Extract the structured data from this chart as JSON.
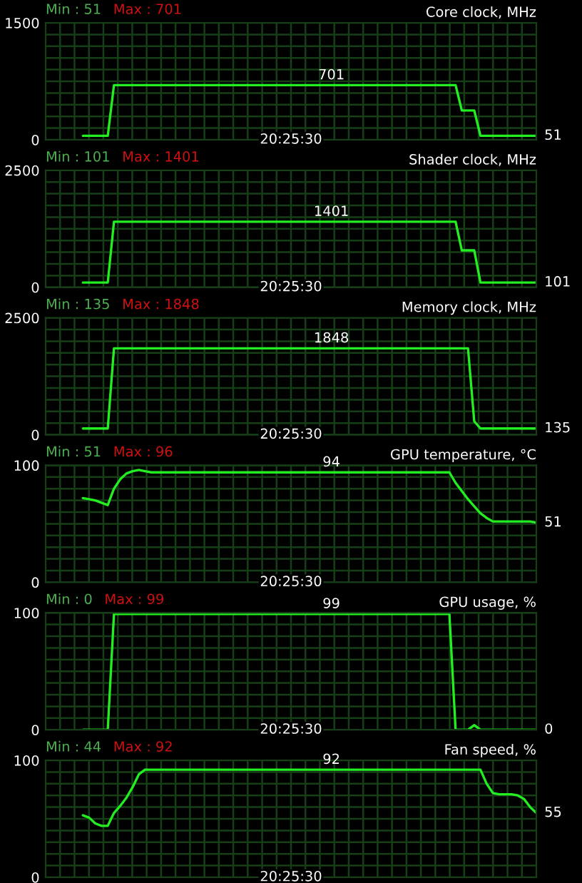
{
  "chart_data": [
    {
      "type": "line",
      "title": "Core clock, MHz",
      "annotations": [
        "Min : 51",
        "Max : 701",
        "20:25:30"
      ],
      "categories": [
        null,
        null,
        null,
        null,
        null,
        null,
        null,
        null,
        null,
        null,
        null,
        null,
        null,
        null,
        null,
        null,
        null,
        null,
        null,
        null,
        null,
        null,
        null,
        null,
        null,
        null,
        null,
        null,
        null,
        null,
        null,
        null,
        null,
        null,
        null,
        null,
        null,
        null,
        null,
        null,
        null,
        null,
        null,
        null,
        null,
        null,
        null,
        null,
        null,
        null,
        null,
        null,
        null,
        null,
        null,
        null,
        null,
        null,
        null,
        null,
        null,
        null,
        null,
        null,
        null,
        null,
        null,
        null,
        null,
        null,
        null,
        null,
        null,
        null,
        null,
        null,
        null,
        null,
        null,
        null
      ],
      "ylim": [
        0,
        1500
      ],
      "yticks": [
        0,
        1500
      ],
      "grid": true,
      "tick_labels": "y",
      "series": [
        {
          "color": "#22ee22",
          "values": [
            null,
            null,
            null,
            null,
            null,
            null,
            51,
            51,
            51,
            51,
            51,
            701,
            701,
            701,
            701,
            701,
            701,
            701,
            701,
            701,
            701,
            701,
            701,
            701,
            701,
            701,
            701,
            701,
            701,
            701,
            701,
            701,
            701,
            701,
            701,
            701,
            701,
            701,
            701,
            701,
            701,
            701,
            701,
            701,
            701,
            701,
            701,
            701,
            701,
            701,
            701,
            701,
            701,
            701,
            701,
            701,
            701,
            701,
            701,
            701,
            701,
            701,
            701,
            701,
            701,
            701,
            701,
            376,
            376,
            376,
            51,
            51,
            51,
            51,
            51,
            51,
            51,
            51,
            51,
            51
          ],
          "value_labels": [
            null,
            null,
            null,
            null,
            null,
            null,
            null,
            null,
            null,
            null,
            null,
            null,
            null,
            null,
            null,
            null,
            null,
            null,
            null,
            null,
            null,
            null,
            null,
            null,
            null,
            null,
            null,
            null,
            null,
            null,
            null,
            null,
            null,
            null,
            null,
            null,
            null,
            null,
            null,
            null,
            null,
            null,
            null,
            null,
            null,
            null,
            "701",
            null,
            null,
            null,
            null,
            null,
            null,
            null,
            null,
            null,
            null,
            null,
            null,
            null,
            null,
            null,
            null,
            null,
            null,
            null,
            null,
            null,
            null,
            null,
            null,
            null,
            null,
            null,
            null,
            null,
            null,
            null,
            null,
            "51"
          ]
        }
      ]
    },
    {
      "type": "line",
      "title": "Shader clock, MHz",
      "annotations": [
        "Min : 101",
        "Max : 1401",
        "20:25:30"
      ],
      "categories": [
        null,
        null,
        null,
        null,
        null,
        null,
        null,
        null,
        null,
        null,
        null,
        null,
        null,
        null,
        null,
        null,
        null,
        null,
        null,
        null,
        null,
        null,
        null,
        null,
        null,
        null,
        null,
        null,
        null,
        null,
        null,
        null,
        null,
        null,
        null,
        null,
        null,
        null,
        null,
        null,
        null,
        null,
        null,
        null,
        null,
        null,
        null,
        null,
        null,
        null,
        null,
        null,
        null,
        null,
        null,
        null,
        null,
        null,
        null,
        null,
        null,
        null,
        null,
        null,
        null,
        null,
        null,
        null,
        null,
        null,
        null,
        null,
        null,
        null,
        null,
        null,
        null,
        null,
        null,
        null
      ],
      "ylim": [
        0,
        2500
      ],
      "yticks": [
        0,
        2500
      ],
      "grid": true,
      "tick_labels": "y",
      "series": [
        {
          "color": "#22ee22",
          "values": [
            null,
            null,
            null,
            null,
            null,
            null,
            101,
            101,
            101,
            101,
            101,
            1401,
            1401,
            1401,
            1401,
            1401,
            1401,
            1401,
            1401,
            1401,
            1401,
            1401,
            1401,
            1401,
            1401,
            1401,
            1401,
            1401,
            1401,
            1401,
            1401,
            1401,
            1401,
            1401,
            1401,
            1401,
            1401,
            1401,
            1401,
            1401,
            1401,
            1401,
            1401,
            1401,
            1401,
            1401,
            1401,
            1401,
            1401,
            1401,
            1401,
            1401,
            1401,
            1401,
            1401,
            1401,
            1401,
            1401,
            1401,
            1401,
            1401,
            1401,
            1401,
            1401,
            1401,
            1401,
            1401,
            789,
            789,
            789,
            101,
            101,
            101,
            101,
            101,
            101,
            101,
            101,
            101,
            101
          ],
          "value_labels": [
            null,
            null,
            null,
            null,
            null,
            null,
            null,
            null,
            null,
            null,
            null,
            null,
            null,
            null,
            null,
            null,
            null,
            null,
            null,
            null,
            null,
            null,
            null,
            null,
            null,
            null,
            null,
            null,
            null,
            null,
            null,
            null,
            null,
            null,
            null,
            null,
            null,
            null,
            null,
            null,
            null,
            null,
            null,
            null,
            null,
            null,
            "1401",
            null,
            null,
            null,
            null,
            null,
            null,
            null,
            null,
            null,
            null,
            null,
            null,
            null,
            null,
            null,
            null,
            null,
            null,
            null,
            null,
            null,
            null,
            null,
            null,
            null,
            null,
            null,
            null,
            null,
            null,
            null,
            null,
            "101"
          ]
        }
      ]
    },
    {
      "type": "line",
      "title": "Memory clock, MHz",
      "annotations": [
        "Min : 135",
        "Max : 1848",
        "20:25:30"
      ],
      "categories": [
        null,
        null,
        null,
        null,
        null,
        null,
        null,
        null,
        null,
        null,
        null,
        null,
        null,
        null,
        null,
        null,
        null,
        null,
        null,
        null,
        null,
        null,
        null,
        null,
        null,
        null,
        null,
        null,
        null,
        null,
        null,
        null,
        null,
        null,
        null,
        null,
        null,
        null,
        null,
        null,
        null,
        null,
        null,
        null,
        null,
        null,
        null,
        null,
        null,
        null,
        null,
        null,
        null,
        null,
        null,
        null,
        null,
        null,
        null,
        null,
        null,
        null,
        null,
        null,
        null,
        null,
        null,
        null,
        null,
        null,
        null,
        null,
        null,
        null,
        null,
        null,
        null,
        null,
        null,
        null
      ],
      "ylim": [
        0,
        2500
      ],
      "yticks": [
        0,
        2500
      ],
      "grid": true,
      "tick_labels": "y",
      "series": [
        {
          "color": "#22ee22",
          "values": [
            null,
            null,
            null,
            null,
            null,
            null,
            135,
            135,
            135,
            135,
            135,
            1848,
            1848,
            1848,
            1848,
            1848,
            1848,
            1848,
            1848,
            1848,
            1848,
            1848,
            1848,
            1848,
            1848,
            1848,
            1848,
            1848,
            1848,
            1848,
            1848,
            1848,
            1848,
            1848,
            1848,
            1848,
            1848,
            1848,
            1848,
            1848,
            1848,
            1848,
            1848,
            1848,
            1848,
            1848,
            1848,
            1848,
            1848,
            1848,
            1848,
            1848,
            1848,
            1848,
            1848,
            1848,
            1848,
            1848,
            1848,
            1848,
            1848,
            1848,
            1848,
            1848,
            1848,
            1848,
            1848,
            1848,
            1848,
            287,
            135,
            135,
            135,
            135,
            135,
            135,
            135,
            135,
            135,
            135
          ],
          "value_labels": [
            null,
            null,
            null,
            null,
            null,
            null,
            null,
            null,
            null,
            null,
            null,
            null,
            null,
            null,
            null,
            null,
            null,
            null,
            null,
            null,
            null,
            null,
            null,
            null,
            null,
            null,
            null,
            null,
            null,
            null,
            null,
            null,
            null,
            null,
            null,
            null,
            null,
            null,
            null,
            null,
            null,
            null,
            null,
            null,
            null,
            null,
            "1848",
            null,
            null,
            null,
            null,
            null,
            null,
            null,
            null,
            null,
            null,
            null,
            null,
            null,
            null,
            null,
            null,
            null,
            null,
            null,
            null,
            null,
            null,
            null,
            null,
            null,
            null,
            null,
            null,
            null,
            null,
            null,
            null,
            "135"
          ]
        }
      ]
    },
    {
      "type": "line",
      "title": "GPU temperature, °C",
      "annotations": [
        "Min : 51",
        "Max : 96",
        "20:25:30"
      ],
      "categories": [
        null,
        null,
        null,
        null,
        null,
        null,
        null,
        null,
        null,
        null,
        null,
        null,
        null,
        null,
        null,
        null,
        null,
        null,
        null,
        null,
        null,
        null,
        null,
        null,
        null,
        null,
        null,
        null,
        null,
        null,
        null,
        null,
        null,
        null,
        null,
        null,
        null,
        null,
        null,
        null,
        null,
        null,
        null,
        null,
        null,
        null,
        null,
        null,
        null,
        null,
        null,
        null,
        null,
        null,
        null,
        null,
        null,
        null,
        null,
        null,
        null,
        null,
        null,
        null,
        null,
        null,
        null,
        null,
        null,
        null,
        null,
        null,
        null,
        null,
        null,
        null,
        null,
        null,
        null,
        null
      ],
      "ylim": [
        0,
        100
      ],
      "yticks": [
        0,
        100
      ],
      "grid": true,
      "tick_labels": "y",
      "series": [
        {
          "color": "#22ee22",
          "values": [
            null,
            null,
            null,
            null,
            null,
            null,
            72,
            71,
            70,
            68,
            66,
            80,
            88,
            93,
            95,
            96,
            95,
            94,
            94,
            94,
            94,
            94,
            94,
            94,
            94,
            94,
            94,
            94,
            94,
            94,
            94,
            94,
            94,
            94,
            94,
            94,
            94,
            94,
            94,
            94,
            94,
            94,
            94,
            94,
            94,
            94,
            94,
            94,
            94,
            94,
            94,
            94,
            94,
            94,
            94,
            94,
            94,
            94,
            94,
            94,
            94,
            94,
            94,
            94,
            94,
            94,
            85,
            78,
            71,
            65,
            59,
            55,
            52,
            52,
            52,
            52,
            52,
            52,
            52,
            51
          ],
          "value_labels": [
            null,
            null,
            null,
            null,
            null,
            null,
            null,
            null,
            null,
            null,
            null,
            null,
            null,
            null,
            null,
            null,
            null,
            null,
            null,
            null,
            null,
            null,
            null,
            null,
            null,
            null,
            null,
            null,
            null,
            null,
            null,
            null,
            null,
            null,
            null,
            null,
            null,
            null,
            null,
            null,
            null,
            null,
            null,
            null,
            null,
            null,
            "94",
            null,
            null,
            null,
            null,
            null,
            null,
            null,
            null,
            null,
            null,
            null,
            null,
            null,
            null,
            null,
            null,
            null,
            null,
            null,
            null,
            null,
            null,
            null,
            null,
            null,
            null,
            null,
            null,
            null,
            null,
            null,
            null,
            "51"
          ]
        }
      ]
    },
    {
      "type": "line",
      "title": "GPU usage, %",
      "annotations": [
        "Min : 0",
        "Max : 99",
        "20:25:30"
      ],
      "categories": [
        null,
        null,
        null,
        null,
        null,
        null,
        null,
        null,
        null,
        null,
        null,
        null,
        null,
        null,
        null,
        null,
        null,
        null,
        null,
        null,
        null,
        null,
        null,
        null,
        null,
        null,
        null,
        null,
        null,
        null,
        null,
        null,
        null,
        null,
        null,
        null,
        null,
        null,
        null,
        null,
        null,
        null,
        null,
        null,
        null,
        null,
        null,
        null,
        null,
        null,
        null,
        null,
        null,
        null,
        null,
        null,
        null,
        null,
        null,
        null,
        null,
        null,
        null,
        null,
        null,
        null,
        null,
        null,
        null,
        null,
        null,
        null,
        null,
        null,
        null,
        null,
        null,
        null,
        null,
        null
      ],
      "ylim": [
        0,
        100
      ],
      "yticks": [
        0,
        100
      ],
      "grid": true,
      "tick_labels": "y",
      "series": [
        {
          "color": "#22ee22",
          "values": [
            null,
            null,
            null,
            null,
            null,
            null,
            0,
            0,
            0,
            0,
            0,
            99,
            99,
            99,
            99,
            99,
            99,
            99,
            99,
            99,
            99,
            99,
            99,
            99,
            99,
            99,
            99,
            99,
            99,
            99,
            99,
            99,
            99,
            99,
            99,
            99,
            99,
            99,
            99,
            99,
            99,
            99,
            99,
            99,
            99,
            99,
            99,
            99,
            99,
            99,
            99,
            99,
            99,
            99,
            99,
            99,
            99,
            99,
            99,
            99,
            99,
            99,
            99,
            99,
            99,
            99,
            0,
            0,
            0,
            4,
            0,
            0,
            0,
            0,
            0,
            0,
            0,
            0,
            0,
            0
          ],
          "value_labels": [
            null,
            null,
            null,
            null,
            null,
            null,
            null,
            null,
            null,
            null,
            null,
            null,
            null,
            null,
            null,
            null,
            null,
            null,
            null,
            null,
            null,
            null,
            null,
            null,
            null,
            null,
            null,
            null,
            null,
            null,
            null,
            null,
            null,
            null,
            null,
            null,
            null,
            null,
            null,
            null,
            null,
            null,
            null,
            null,
            null,
            null,
            "99",
            null,
            null,
            null,
            null,
            null,
            null,
            null,
            null,
            null,
            null,
            null,
            null,
            null,
            null,
            null,
            null,
            null,
            null,
            null,
            null,
            null,
            null,
            null,
            null,
            null,
            null,
            null,
            null,
            null,
            null,
            null,
            null,
            "0"
          ]
        }
      ]
    },
    {
      "type": "line",
      "title": "Fan speed, %",
      "annotations": [
        "Min : 44",
        "Max : 92",
        "20:25:30"
      ],
      "categories": [
        null,
        null,
        null,
        null,
        null,
        null,
        null,
        null,
        null,
        null,
        null,
        null,
        null,
        null,
        null,
        null,
        null,
        null,
        null,
        null,
        null,
        null,
        null,
        null,
        null,
        null,
        null,
        null,
        null,
        null,
        null,
        null,
        null,
        null,
        null,
        null,
        null,
        null,
        null,
        null,
        null,
        null,
        null,
        null,
        null,
        null,
        null,
        null,
        null,
        null,
        null,
        null,
        null,
        null,
        null,
        null,
        null,
        null,
        null,
        null,
        null,
        null,
        null,
        null,
        null,
        null,
        null,
        null,
        null,
        null,
        null,
        null,
        null,
        null,
        null,
        null,
        null,
        null,
        null,
        null
      ],
      "ylim": [
        0,
        100
      ],
      "yticks": [
        0,
        100
      ],
      "grid": true,
      "tick_labels": "y",
      "series": [
        {
          "color": "#22ee22",
          "values": [
            null,
            null,
            null,
            null,
            null,
            null,
            53,
            51,
            46,
            44,
            44,
            55,
            61,
            68,
            77,
            88,
            92,
            92,
            92,
            92,
            92,
            92,
            92,
            92,
            92,
            92,
            92,
            92,
            92,
            92,
            92,
            92,
            92,
            92,
            92,
            92,
            92,
            92,
            92,
            92,
            92,
            92,
            92,
            92,
            92,
            92,
            92,
            92,
            92,
            92,
            92,
            92,
            92,
            92,
            92,
            92,
            92,
            92,
            92,
            92,
            92,
            92,
            92,
            92,
            92,
            92,
            92,
            92,
            92,
            92,
            92,
            80,
            72,
            71,
            71,
            71,
            70,
            67,
            60,
            55
          ],
          "value_labels": [
            null,
            null,
            null,
            null,
            null,
            null,
            null,
            null,
            null,
            null,
            null,
            null,
            null,
            null,
            null,
            null,
            null,
            null,
            null,
            null,
            null,
            null,
            null,
            null,
            null,
            null,
            null,
            null,
            null,
            null,
            null,
            null,
            null,
            null,
            null,
            null,
            null,
            null,
            null,
            null,
            null,
            null,
            null,
            null,
            null,
            null,
            "92",
            null,
            null,
            null,
            null,
            null,
            null,
            null,
            null,
            null,
            null,
            null,
            null,
            null,
            null,
            null,
            null,
            null,
            null,
            null,
            null,
            null,
            null,
            null,
            null,
            null,
            null,
            null,
            null,
            null,
            null,
            null,
            null,
            "55"
          ]
        }
      ]
    }
  ]
}
